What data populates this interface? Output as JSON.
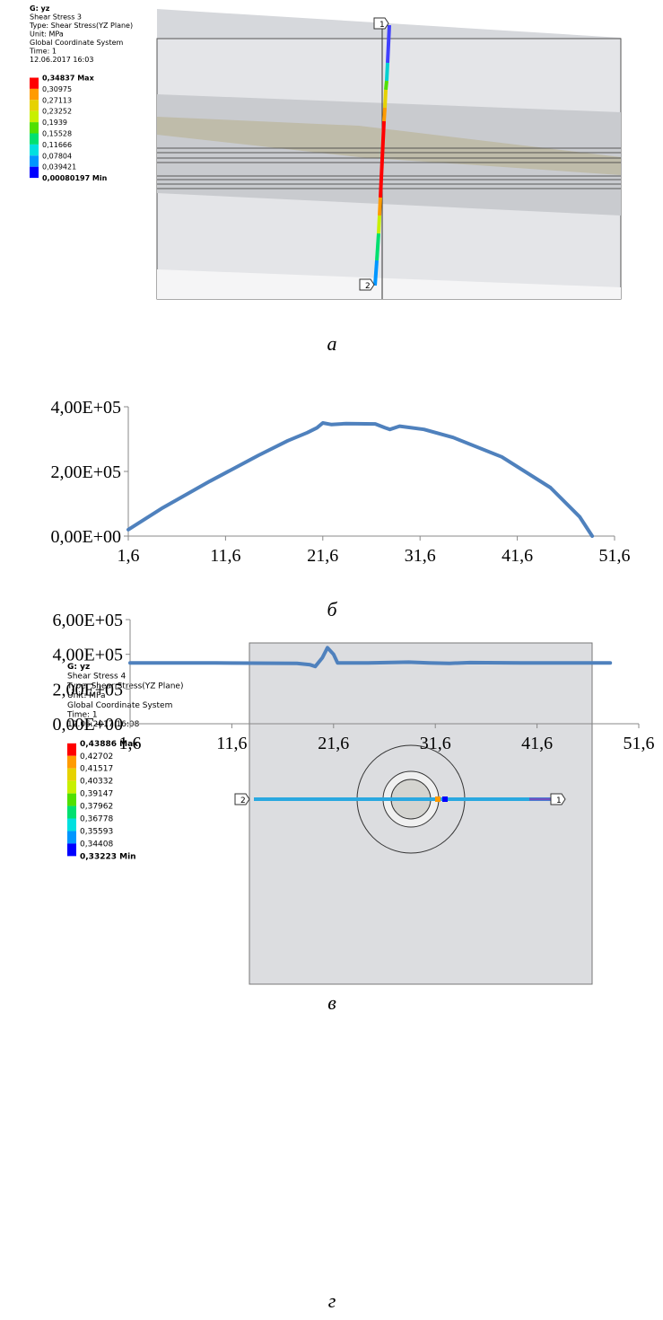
{
  "figures": [
    {
      "title": "G: yz",
      "info": [
        "Shear Stress 3",
        "Type: Shear Stress(YZ Plane)",
        "Unit: MPa",
        "Global Coordinate System",
        "Time: 1",
        "12.06.2017 16:03"
      ],
      "scale": [
        "0,34837 Max",
        "0,30975",
        "0,27113",
        "0,23252",
        "0,1939",
        "0,15528",
        "0,11666",
        "0,07804",
        "0,039421",
        "0,00080197 Min"
      ],
      "colors": [
        "#ff0000",
        "#ff9b00",
        "#e6d200",
        "#c8f000",
        "#50e000",
        "#00e070",
        "#00e0e0",
        "#0096ff",
        "#0000ff"
      ],
      "probe_labels": [
        "1",
        "2"
      ],
      "caption": "а"
    },
    {
      "title": "G: yz",
      "info": [
        "Shear Stress 4",
        "Type: Shear Stress(YZ Plane)",
        "Unit: MPa",
        "Global Coordinate System",
        "Time: 1",
        "12.06.2017 16:08"
      ],
      "scale": [
        "0,43886 Max",
        "0,42702",
        "0,41517",
        "0,40332",
        "0,39147",
        "0,37962",
        "0,36778",
        "0,35593",
        "0,34408",
        "0,33223 Min"
      ],
      "colors": [
        "#ff0000",
        "#ff9b00",
        "#e6d200",
        "#c8f000",
        "#50e000",
        "#00e070",
        "#00e0e0",
        "#0096ff",
        "#0000ff"
      ],
      "probe_labels": [
        "1",
        "2"
      ],
      "caption": "в"
    }
  ],
  "chart_data": [
    {
      "type": "line",
      "caption": "б",
      "x": [
        1.6,
        5,
        10,
        15,
        18,
        20,
        21,
        21.6,
        22.5,
        24,
        27,
        28,
        28.5,
        29.5,
        32,
        35,
        40,
        45,
        48,
        49.3
      ],
      "series": [
        {
          "color": "#4f81bd",
          "values": [
            20000,
            85000,
            170000,
            250000,
            295000,
            320000,
            335000,
            350000,
            345000,
            348000,
            347000,
            335000,
            330000,
            340000,
            330000,
            305000,
            245000,
            150000,
            60000,
            0
          ]
        }
      ],
      "xlim": [
        1.6,
        51.6
      ],
      "xticks": [
        {
          "value": 1.6,
          "label": "1,6"
        },
        {
          "value": 11.6,
          "label": "11,6"
        },
        {
          "value": 21.6,
          "label": "21,6"
        },
        {
          "value": 31.6,
          "label": "31,6"
        },
        {
          "value": 41.6,
          "label": "41,6"
        },
        {
          "value": 51.6,
          "label": "51,6"
        }
      ],
      "ylim": [
        0,
        400000
      ],
      "yticks": [
        {
          "value": 0,
          "label": "0,00E+00"
        },
        {
          "value": 200000,
          "label": "2,00E+05"
        },
        {
          "value": 400000,
          "label": "4,00E+05"
        }
      ]
    },
    {
      "type": "line",
      "caption": "г",
      "x": [
        1.6,
        10,
        18,
        19.3,
        19.8,
        20.5,
        21,
        21.6,
        22,
        25,
        29,
        31,
        33,
        35,
        40,
        48.8
      ],
      "series": [
        {
          "color": "#4f81bd",
          "values": [
            350000,
            350000,
            348000,
            340000,
            330000,
            380000,
            438000,
            400000,
            350000,
            350000,
            355000,
            350000,
            348000,
            352000,
            350000,
            350000
          ]
        }
      ],
      "xlim": [
        1.6,
        51.6
      ],
      "xticks": [
        {
          "value": 1.6,
          "label": "1,6"
        },
        {
          "value": 11.6,
          "label": "11,6"
        },
        {
          "value": 21.6,
          "label": "21,6"
        },
        {
          "value": 31.6,
          "label": "31,6"
        },
        {
          "value": 41.6,
          "label": "41,6"
        },
        {
          "value": 51.6,
          "label": "51,6"
        }
      ],
      "ylim": [
        0,
        600000
      ],
      "yticks": [
        {
          "value": 0,
          "label": "0,00E+00"
        },
        {
          "value": 200000,
          "label": "2,00E+05"
        },
        {
          "value": 400000,
          "label": "4,00E+05"
        },
        {
          "value": 600000,
          "label": "6,00E+05"
        }
      ]
    }
  ]
}
